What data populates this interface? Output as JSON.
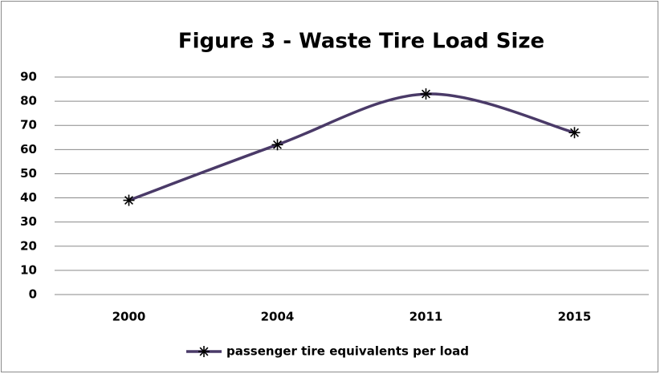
{
  "chart_data": {
    "type": "line",
    "title": "Figure 3 - Waste Tire Load Size",
    "categories": [
      "2000",
      "2004",
      "2011",
      "2015"
    ],
    "series": [
      {
        "name": "passenger tire equivalents per load",
        "color": "#4a3a68",
        "values": [
          39,
          62,
          83,
          67
        ]
      }
    ],
    "ylim": [
      0,
      90
    ],
    "yticks": [
      0,
      10,
      20,
      30,
      40,
      50,
      60,
      70,
      80,
      90
    ],
    "grid": true,
    "smooth": true,
    "marker": "asterisk",
    "marker_color": "#000000",
    "legend": "bottom"
  }
}
